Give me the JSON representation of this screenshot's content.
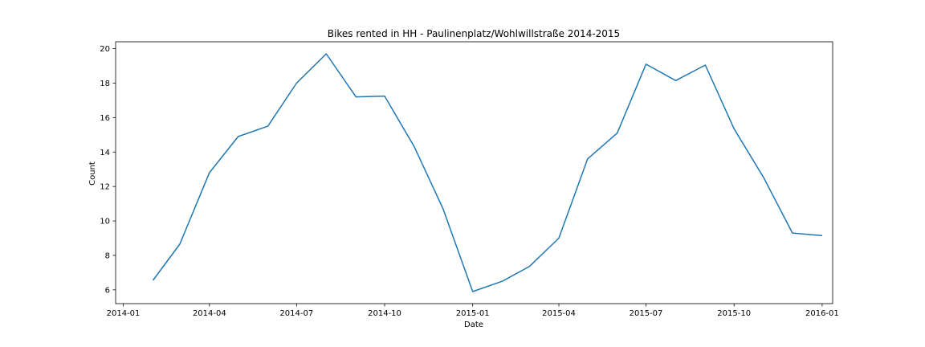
{
  "chart_data": {
    "type": "line",
    "title": "Bikes rented in HH - Paulinenplatz/Wohlwillstraße 2014-2015",
    "xlabel": "Date",
    "ylabel": "Count",
    "xlim": [
      "2013-12-24",
      "2016-01-12"
    ],
    "ylim": [
      5.2,
      20.4
    ],
    "grid": false,
    "line_color": "#1f77b4",
    "x_ticks": [
      "2014-01",
      "2014-04",
      "2014-07",
      "2014-10",
      "2015-01",
      "2015-04",
      "2015-07",
      "2015-10",
      "2016-01"
    ],
    "y_ticks": [
      6,
      8,
      10,
      12,
      14,
      16,
      18,
      20
    ],
    "series": [
      {
        "x": [
          "2014-02-01",
          "2014-03-01",
          "2014-04-01",
          "2014-05-01",
          "2014-06-01",
          "2014-07-01",
          "2014-08-01",
          "2014-09-01",
          "2014-10-01",
          "2014-11-01",
          "2014-12-01",
          "2015-01-01",
          "2015-02-01",
          "2015-03-01",
          "2015-04-01",
          "2015-05-01",
          "2015-06-01",
          "2015-07-01",
          "2015-08-01",
          "2015-09-01",
          "2015-10-01",
          "2015-11-01",
          "2015-12-01",
          "2016-01-01"
        ],
        "values": [
          6.55,
          8.65,
          12.8,
          14.9,
          15.5,
          18.0,
          19.7,
          17.2,
          17.25,
          14.3,
          10.7,
          5.9,
          6.5,
          7.35,
          9.0,
          13.6,
          15.1,
          19.1,
          18.15,
          19.05,
          15.35,
          12.5,
          9.3,
          9.15
        ]
      }
    ]
  }
}
